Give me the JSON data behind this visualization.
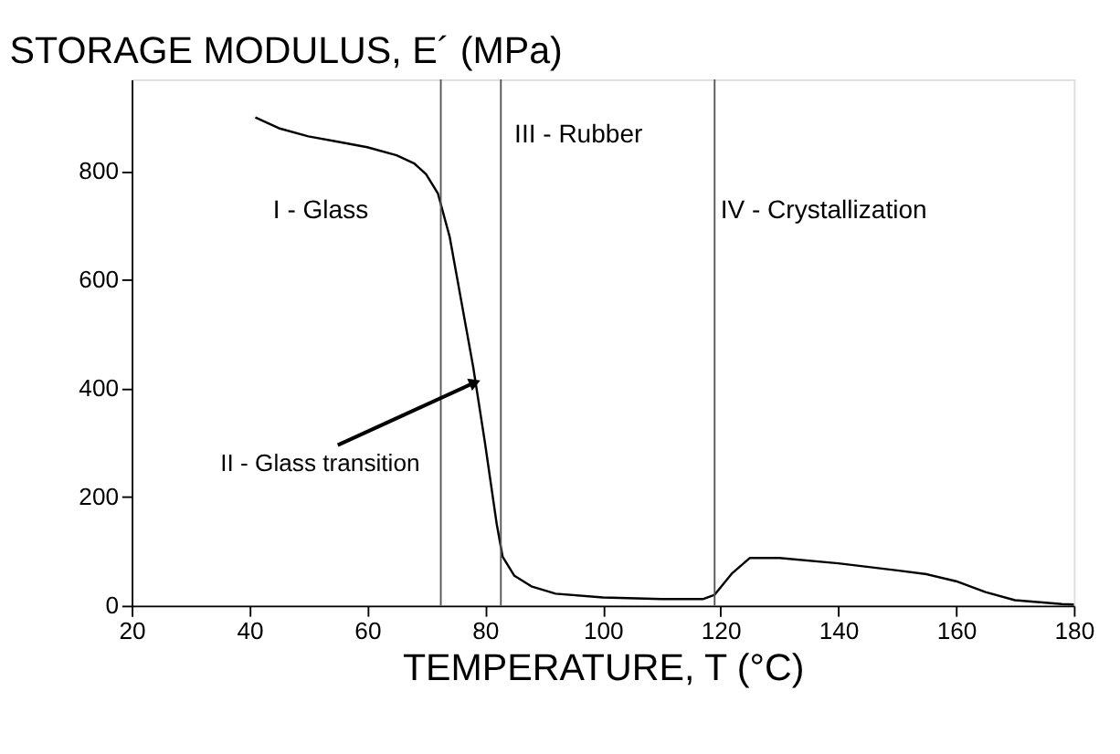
{
  "chart_data": {
    "type": "line",
    "title": "STORAGE MODULUS, E´ (MPa)",
    "xlabel": "TEMPERATURE, T (°C)",
    "x": [
      41,
      45,
      50,
      55,
      60,
      65,
      68,
      70,
      72,
      74,
      76,
      78,
      80,
      82,
      83,
      85,
      88,
      92,
      100,
      110,
      117,
      119,
      122,
      125,
      130,
      140,
      150,
      155,
      160,
      165,
      170,
      178,
      180
    ],
    "series": [
      {
        "color": "#000000",
        "values": [
          900,
          880,
          865,
          855,
          845,
          830,
          815,
          795,
          760,
          680,
          560,
          440,
          300,
          150,
          90,
          55,
          35,
          22,
          15,
          12,
          12,
          20,
          60,
          88,
          88,
          78,
          65,
          58,
          45,
          25,
          10,
          3,
          2
        ]
      }
    ],
    "xlim": [
      20,
      180
    ],
    "xticks": [
      20,
      40,
      60,
      80,
      100,
      120,
      140,
      160,
      180
    ],
    "ylim": [
      0,
      970
    ],
    "yticks": [
      0,
      200,
      400,
      600,
      800
    ],
    "grid": false,
    "marker": "none",
    "line_style": "solid",
    "ref_lines": [
      {
        "axis": "x",
        "value": 72.5,
        "color": "#555555"
      },
      {
        "axis": "x",
        "value": 82.7,
        "color": "#555555"
      },
      {
        "axis": "x",
        "value": 119,
        "color": "#555555"
      }
    ],
    "annotations": [
      "I - Glass",
      {
        "text": "II - Glass transition",
        "x": 78,
        "y": 410
      },
      "III - Rubber",
      "IV - Crystallization"
    ]
  }
}
